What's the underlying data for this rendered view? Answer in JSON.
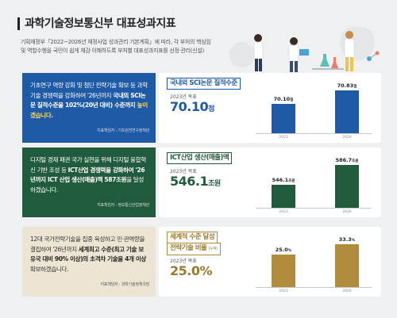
{
  "header": {
    "title": "과학기술정보통신부 대표성과지표",
    "intro": "기획재정부「2022~2026년 재정사업 성과관리 기본계획」에 따라, 각 부처의 핵심임무 및 역할수행을 국민이 쉽게 체감·이해하도록 부처별 대표성과지표를 선정·관리(신설)"
  },
  "colors": {
    "blue": "#1f5aa6",
    "green": "#215b3d",
    "gold": "#b08c3c"
  },
  "rows": [
    {
      "desc_pre": "기초연구 역량 강화 및 첨단 전략기술 확보 등 과학기술 경쟁력을 강화하여 '26년까지 ",
      "desc_hl": "국내외 SCI논문 질적수준을 102%(20년 대비) 수준까지",
      "desc_post": " 높이겠습니다.",
      "responsible": "지표책임자 : 기초원천연구정책관",
      "tag": "국내외 SCI논문 질적수준",
      "target_label": "2023년 목표",
      "target_value": "70.10",
      "target_unit": "점",
      "bars": [
        {
          "year": "2023",
          "value": 70.1,
          "label": "70.10",
          "unit": "점"
        },
        {
          "year": "2026",
          "value": 70.83,
          "label": "70.83",
          "unit": "점"
        }
      ]
    },
    {
      "desc_pre": "디지털 경제 패권 국가 실현을 위해 디지털 융합혁신 기반 조성 등 ",
      "desc_hl": "ICT산업 경쟁력을 강화하여 '26년까지 ICT 산업 생산(매출)액 587조원",
      "desc_post": "을 달성하겠습니다.",
      "responsible": "지표책임자 : 정보통신산업정책관",
      "tag": "ICT산업 생산(매출)액",
      "target_label": "2023년 목표",
      "target_value": "546.1",
      "target_unit": "조원",
      "bars": [
        {
          "year": "2023",
          "value": 546.1,
          "label": "546.1",
          "unit": "조원"
        },
        {
          "year": "2026",
          "value": 586.7,
          "label": "586.7",
          "unit": "조원"
        }
      ]
    },
    {
      "desc_pre": "12대 국가전략기술을 집중 육성하고 민·관역량을 결집하여 '26년까지 ",
      "desc_hl": "세계최고 수준(최고 기술 보유국 대비 90% 이상)의 초격차 기술을 4개 이상",
      "desc_post": " 확보하겠습니다.",
      "responsible": "지표책임자 : 과학기술정책국장",
      "tag": "세계적 수준 달성",
      "tag2": "전략기술 비율",
      "tag2_note": "(누적)",
      "target_label": "2023년 목표",
      "target_value": "25.0",
      "target_unit": "%",
      "bars": [
        {
          "year": "2023",
          "value": 25.0,
          "label": "25.0",
          "unit": "%"
        },
        {
          "year": "2026",
          "value": 33.3,
          "label": "33.3",
          "unit": "%"
        }
      ]
    }
  ]
}
